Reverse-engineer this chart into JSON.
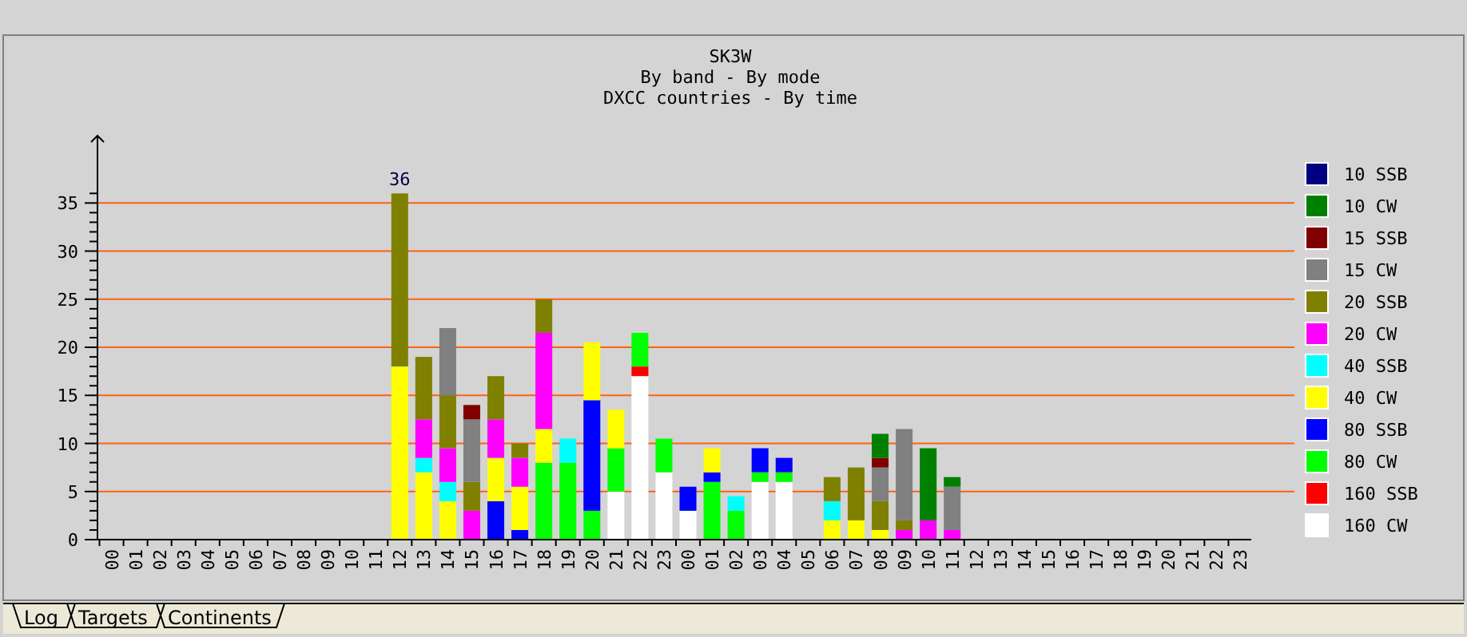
{
  "chart_data": {
    "type": "bar",
    "stacked": true,
    "title": "SK3W",
    "subtitle": "By band - By mode\nDXCC countries - By time",
    "categories": [
      "00",
      "01",
      "02",
      "03",
      "04",
      "05",
      "06",
      "07",
      "08",
      "09",
      "10",
      "11",
      "12",
      "13",
      "14",
      "15",
      "16",
      "17",
      "18",
      "19",
      "20",
      "21",
      "22",
      "23",
      "00",
      "01",
      "02",
      "03",
      "04",
      "05",
      "06",
      "07",
      "08",
      "09",
      "10",
      "11",
      "12",
      "13",
      "14",
      "15",
      "16",
      "17",
      "18",
      "19",
      "20",
      "21",
      "22",
      "23"
    ],
    "series": [
      {
        "name": "160 CW",
        "color": "#ffffff",
        "values": [
          0,
          0,
          0,
          0,
          0,
          0,
          0,
          0,
          0,
          0,
          0,
          0,
          0,
          0,
          0,
          0,
          0,
          0,
          0,
          0,
          0,
          5,
          17,
          7,
          3,
          0,
          0,
          6,
          6,
          0,
          0,
          0,
          0,
          0,
          0,
          0,
          0,
          0,
          0,
          0,
          0,
          0,
          0,
          0,
          0,
          0,
          0,
          0
        ]
      },
      {
        "name": "160 SSB",
        "color": "#ff0000",
        "values": [
          0,
          0,
          0,
          0,
          0,
          0,
          0,
          0,
          0,
          0,
          0,
          0,
          0,
          0,
          0,
          0,
          0,
          0,
          0,
          0,
          0,
          0,
          1,
          0,
          0,
          0,
          0,
          0,
          0,
          0,
          0,
          0,
          0,
          0,
          0,
          0,
          0,
          0,
          0,
          0,
          0,
          0,
          0,
          0,
          0,
          0,
          0,
          0
        ]
      },
      {
        "name": "80 CW",
        "color": "#00ff00",
        "values": [
          0,
          0,
          0,
          0,
          0,
          0,
          0,
          0,
          0,
          0,
          0,
          0,
          0,
          0,
          0,
          0,
          0,
          0,
          8,
          8,
          3,
          4.5,
          3.5,
          3.5,
          0,
          6,
          3,
          1,
          1,
          0,
          0,
          0,
          0,
          0,
          0,
          0,
          0,
          0,
          0,
          0,
          0,
          0,
          0,
          0,
          0,
          0,
          0,
          0
        ]
      },
      {
        "name": "80 SSB",
        "color": "#0000ff",
        "values": [
          0,
          0,
          0,
          0,
          0,
          0,
          0,
          0,
          0,
          0,
          0,
          0,
          0,
          0,
          0,
          0,
          4,
          1,
          0,
          0,
          11.5,
          0,
          0,
          0,
          2.5,
          1,
          0,
          2.5,
          1.5,
          0,
          0,
          0,
          0,
          0,
          0,
          0,
          0,
          0,
          0,
          0,
          0,
          0,
          0,
          0,
          0,
          0,
          0,
          0
        ]
      },
      {
        "name": "40 CW",
        "color": "#ffff00",
        "values": [
          0,
          0,
          0,
          0,
          0,
          0,
          0,
          0,
          0,
          0,
          0,
          0,
          18,
          7,
          4,
          0,
          4.5,
          4.5,
          3.5,
          0,
          6,
          4,
          0,
          0,
          0,
          2.5,
          0,
          0,
          0,
          0,
          2,
          2,
          1,
          0,
          0,
          0,
          0,
          0,
          0,
          0,
          0,
          0,
          0,
          0,
          0,
          0,
          0,
          0
        ]
      },
      {
        "name": "40 SSB",
        "color": "#00ffff",
        "values": [
          0,
          0,
          0,
          0,
          0,
          0,
          0,
          0,
          0,
          0,
          0,
          0,
          0,
          1.5,
          2,
          0,
          0,
          0,
          0,
          2.5,
          0,
          0,
          0,
          0,
          0,
          0,
          1.5,
          0,
          0,
          0,
          2,
          0,
          0,
          0,
          0,
          0,
          0,
          0,
          0,
          0,
          0,
          0,
          0,
          0,
          0,
          0,
          0,
          0
        ]
      },
      {
        "name": "20 CW",
        "color": "#ff00ff",
        "values": [
          0,
          0,
          0,
          0,
          0,
          0,
          0,
          0,
          0,
          0,
          0,
          0,
          0,
          4,
          3.5,
          3,
          4,
          3,
          10,
          0,
          0,
          0,
          0,
          0,
          0,
          0,
          0,
          0,
          0,
          0,
          0,
          0,
          0,
          1,
          2,
          1,
          0,
          0,
          0,
          0,
          0,
          0,
          0,
          0,
          0,
          0,
          0,
          0
        ]
      },
      {
        "name": "20 SSB",
        "color": "#808000",
        "values": [
          0,
          0,
          0,
          0,
          0,
          0,
          0,
          0,
          0,
          0,
          0,
          0,
          18,
          6.5,
          5.5,
          3,
          4.5,
          1.5,
          3.5,
          0,
          0,
          0,
          0,
          0,
          0,
          0,
          0,
          0,
          0,
          0,
          2.5,
          5.5,
          3,
          1,
          0,
          0,
          0,
          0,
          0,
          0,
          0,
          0,
          0,
          0,
          0,
          0,
          0,
          0
        ]
      },
      {
        "name": "15 CW",
        "color": "#808080",
        "values": [
          0,
          0,
          0,
          0,
          0,
          0,
          0,
          0,
          0,
          0,
          0,
          0,
          0,
          0,
          7,
          6.5,
          0,
          0,
          0,
          0,
          0,
          0,
          0,
          0,
          0,
          0,
          0,
          0,
          0,
          0,
          0,
          0,
          3.5,
          9.5,
          0,
          4.5,
          0,
          0,
          0,
          0,
          0,
          0,
          0,
          0,
          0,
          0,
          0,
          0
        ]
      },
      {
        "name": "15 SSB",
        "color": "#800000",
        "values": [
          0,
          0,
          0,
          0,
          0,
          0,
          0,
          0,
          0,
          0,
          0,
          0,
          0,
          0,
          0,
          1.5,
          0,
          0,
          0,
          0,
          0,
          0,
          0,
          0,
          0,
          0,
          0,
          0,
          0,
          0,
          0,
          0,
          1,
          0,
          0,
          0,
          0,
          0,
          0,
          0,
          0,
          0,
          0,
          0,
          0,
          0,
          0,
          0
        ]
      },
      {
        "name": "10 CW",
        "color": "#008000",
        "values": [
          0,
          0,
          0,
          0,
          0,
          0,
          0,
          0,
          0,
          0,
          0,
          0,
          0,
          0,
          0,
          0,
          0,
          0,
          0,
          0,
          0,
          0,
          0,
          0,
          0,
          0,
          0,
          0,
          0,
          0,
          0,
          0,
          2.5,
          0,
          7.5,
          1,
          0,
          0,
          0,
          0,
          0,
          0,
          0,
          0,
          0,
          0,
          0,
          0
        ]
      },
      {
        "name": "10 SSB",
        "color": "#000080",
        "values": [
          0,
          0,
          0,
          0,
          0,
          0,
          0,
          0,
          0,
          0,
          0,
          0,
          0,
          0,
          0,
          0,
          0,
          0,
          0,
          0,
          0,
          0,
          0,
          0,
          0,
          0,
          0,
          0,
          0,
          0,
          0,
          0,
          0,
          0,
          0,
          0,
          0,
          0,
          0,
          0,
          0,
          0,
          0,
          0,
          0,
          0,
          0,
          0
        ]
      }
    ],
    "totals": [
      null,
      null,
      null,
      null,
      null,
      null,
      null,
      null,
      null,
      null,
      null,
      null,
      "36",
      null,
      null,
      null,
      null,
      null,
      null,
      null,
      null,
      null,
      null,
      null,
      null,
      null,
      null,
      null,
      null,
      null,
      null,
      null,
      null,
      null,
      null,
      null,
      null,
      null,
      null,
      null,
      null,
      null,
      null,
      null,
      null,
      null,
      null,
      null
    ],
    "ylim": [
      0,
      42
    ],
    "yticks": [
      0,
      {
        "value": 1,
        "label": null
      },
      {
        "value": 2,
        "label": null
      },
      {
        "value": 3,
        "label": null
      },
      {
        "value": 4,
        "label": null
      },
      5,
      {
        "value": 6,
        "label": null
      },
      {
        "value": 7,
        "label": null
      },
      {
        "value": 8,
        "label": null
      },
      {
        "value": 9,
        "label": null
      },
      10,
      {
        "value": 11,
        "label": null
      },
      {
        "value": 12,
        "label": null
      },
      {
        "value": 13,
        "label": null
      },
      {
        "value": 14,
        "label": null
      },
      15,
      {
        "value": 16,
        "label": null
      },
      {
        "value": 17,
        "label": null
      },
      {
        "value": 18,
        "label": null
      },
      {
        "value": 19,
        "label": null
      },
      20,
      {
        "value": 21,
        "label": null
      },
      {
        "value": 22,
        "label": null
      },
      {
        "value": 23,
        "label": null
      },
      {
        "value": 24,
        "label": null
      },
      25,
      {
        "value": 26,
        "label": null
      },
      {
        "value": 27,
        "label": null
      },
      {
        "value": 28,
        "label": null
      },
      {
        "value": 29,
        "label": null
      },
      30,
      {
        "value": 31,
        "label": null
      },
      {
        "value": 32,
        "label": null
      },
      {
        "value": 33,
        "label": null
      },
      {
        "value": 34,
        "label": null
      },
      35,
      {
        "value": 36,
        "label": null
      }
    ],
    "grid": "y",
    "legend": "right",
    "annotations": [
      "Log",
      "Targets",
      "Continents"
    ]
  }
}
